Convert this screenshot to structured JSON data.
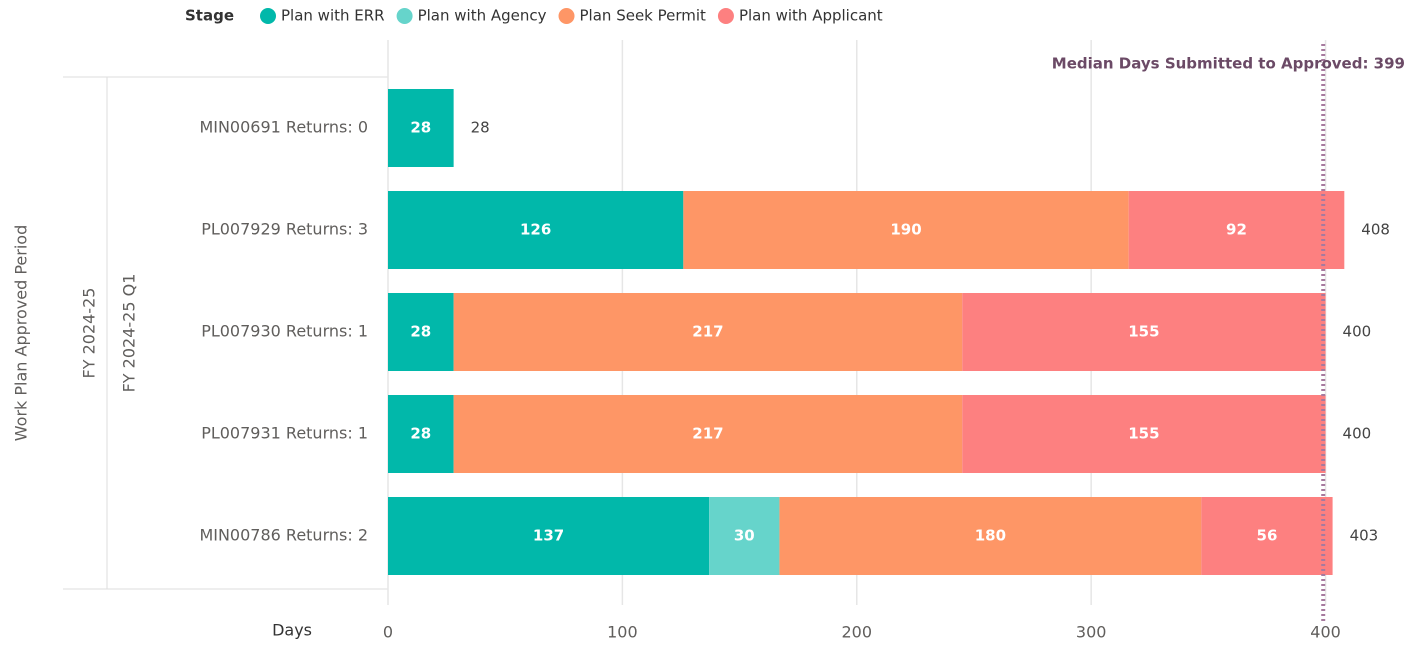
{
  "chart_data": {
    "type": "stacked_bar_horizontal",
    "legend_title": "Stage",
    "y_axis_title": "Work Plan Approved Period",
    "group_label": "FY 2024-25",
    "subgroup_label": "FY 2024-25 Q1",
    "x_axis_title": "Days",
    "categories": [
      "MIN00691 Returns: 0",
      "PL007929 Returns: 3",
      "PL007930 Returns: 1",
      "PL007931 Returns: 1",
      "MIN00786 Returns: 2"
    ],
    "series": [
      {
        "name": "Plan with ERR",
        "color": "#01b8aa",
        "values": [
          28,
          126,
          28,
          28,
          137
        ]
      },
      {
        "name": "Plan with Agency",
        "color": "#66d4cb",
        "values": [
          null,
          null,
          null,
          null,
          30
        ]
      },
      {
        "name": "Plan Seek Permit",
        "color": "#fe9666",
        "values": [
          null,
          190,
          217,
          217,
          180
        ]
      },
      {
        "name": "Plan with Applicant",
        "color": "#fd8080",
        "values": [
          null,
          92,
          155,
          155,
          56
        ]
      }
    ],
    "totals": [
      28,
      408,
      400,
      400,
      403
    ],
    "xlim": [
      0,
      410
    ],
    "xticks": [
      0,
      100,
      200,
      300,
      400
    ],
    "grid": true,
    "reference_line": {
      "label": "Median Days Submitted to Approved: 399",
      "value": 399,
      "color": "#a67a9e"
    }
  }
}
